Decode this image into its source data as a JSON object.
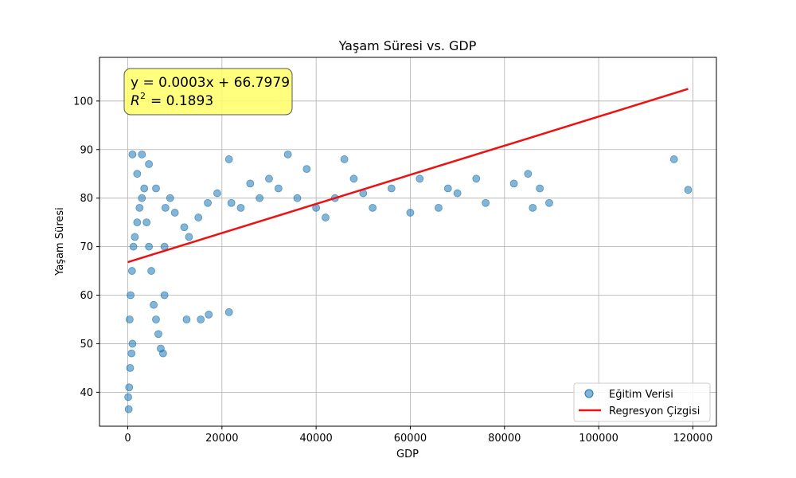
{
  "chart_data": {
    "type": "scatter",
    "title": "Yaşam Süresi vs. GDP",
    "xlabel": "GDP",
    "ylabel": "Yaşam Süresi",
    "xlim": [
      -6000,
      125000
    ],
    "ylim": [
      33,
      109
    ],
    "xticks": [
      0,
      20000,
      40000,
      60000,
      80000,
      100000,
      120000
    ],
    "yticks": [
      40,
      50,
      60,
      70,
      80,
      90,
      100
    ],
    "grid": true,
    "legend_position": "bottom-right",
    "annotation": {
      "line1": "y = 0.0003x + 66.7979",
      "r2_symbol": "R",
      "r2_exponent": "2",
      "r2_value": "= 0.1893",
      "background": "#ffff66"
    },
    "series": [
      {
        "name": "Eğitim Verisi",
        "kind": "scatter",
        "color": "#1f77b4",
        "opacity": 0.55,
        "points": [
          [
            100,
            39
          ],
          [
            200,
            36.5
          ],
          [
            300,
            41
          ],
          [
            500,
            45
          ],
          [
            800,
            48
          ],
          [
            1000,
            50
          ],
          [
            400,
            55
          ],
          [
            600,
            60
          ],
          [
            900,
            65
          ],
          [
            1200,
            70
          ],
          [
            1500,
            72
          ],
          [
            2000,
            75
          ],
          [
            2500,
            78
          ],
          [
            3000,
            80
          ],
          [
            3500,
            82
          ],
          [
            4000,
            75
          ],
          [
            4500,
            70
          ],
          [
            5000,
            65
          ],
          [
            5500,
            58
          ],
          [
            6000,
            55
          ],
          [
            6500,
            52
          ],
          [
            7000,
            49
          ],
          [
            7500,
            48
          ],
          [
            7800,
            60
          ],
          [
            7800,
            70
          ],
          [
            8000,
            78
          ],
          [
            3000,
            89
          ],
          [
            1000,
            89
          ],
          [
            4500,
            87
          ],
          [
            2000,
            85
          ],
          [
            6000,
            82
          ],
          [
            9000,
            80
          ],
          [
            10000,
            77
          ],
          [
            12000,
            74
          ],
          [
            13000,
            72
          ],
          [
            15000,
            76
          ],
          [
            17000,
            79
          ],
          [
            19000,
            81
          ],
          [
            12500,
            55
          ],
          [
            15500,
            55
          ],
          [
            17200,
            56
          ],
          [
            21500,
            56.5
          ],
          [
            21500,
            88
          ],
          [
            22000,
            79
          ],
          [
            24000,
            78
          ],
          [
            26000,
            83
          ],
          [
            28000,
            80
          ],
          [
            30000,
            84
          ],
          [
            32000,
            82
          ],
          [
            34000,
            89
          ],
          [
            36000,
            80
          ],
          [
            38000,
            86
          ],
          [
            40000,
            78
          ],
          [
            42000,
            76
          ],
          [
            44000,
            80
          ],
          [
            46000,
            88
          ],
          [
            48000,
            84
          ],
          [
            50000,
            81
          ],
          [
            52000,
            78
          ],
          [
            56000,
            82
          ],
          [
            60000,
            77
          ],
          [
            62000,
            84
          ],
          [
            66000,
            78
          ],
          [
            68000,
            82
          ],
          [
            70000,
            81
          ],
          [
            74000,
            84
          ],
          [
            76000,
            79
          ],
          [
            82000,
            83
          ],
          [
            85000,
            85
          ],
          [
            86000,
            78
          ],
          [
            87500,
            82
          ],
          [
            89500,
            79
          ],
          [
            116000,
            88
          ],
          [
            119000,
            81.7
          ]
        ]
      },
      {
        "name": "Regresyon Çizgisi",
        "kind": "line",
        "color": "#ee1111",
        "slope": 0.0003,
        "intercept": 66.7979,
        "x_range": [
          0,
          119000
        ]
      }
    ]
  }
}
